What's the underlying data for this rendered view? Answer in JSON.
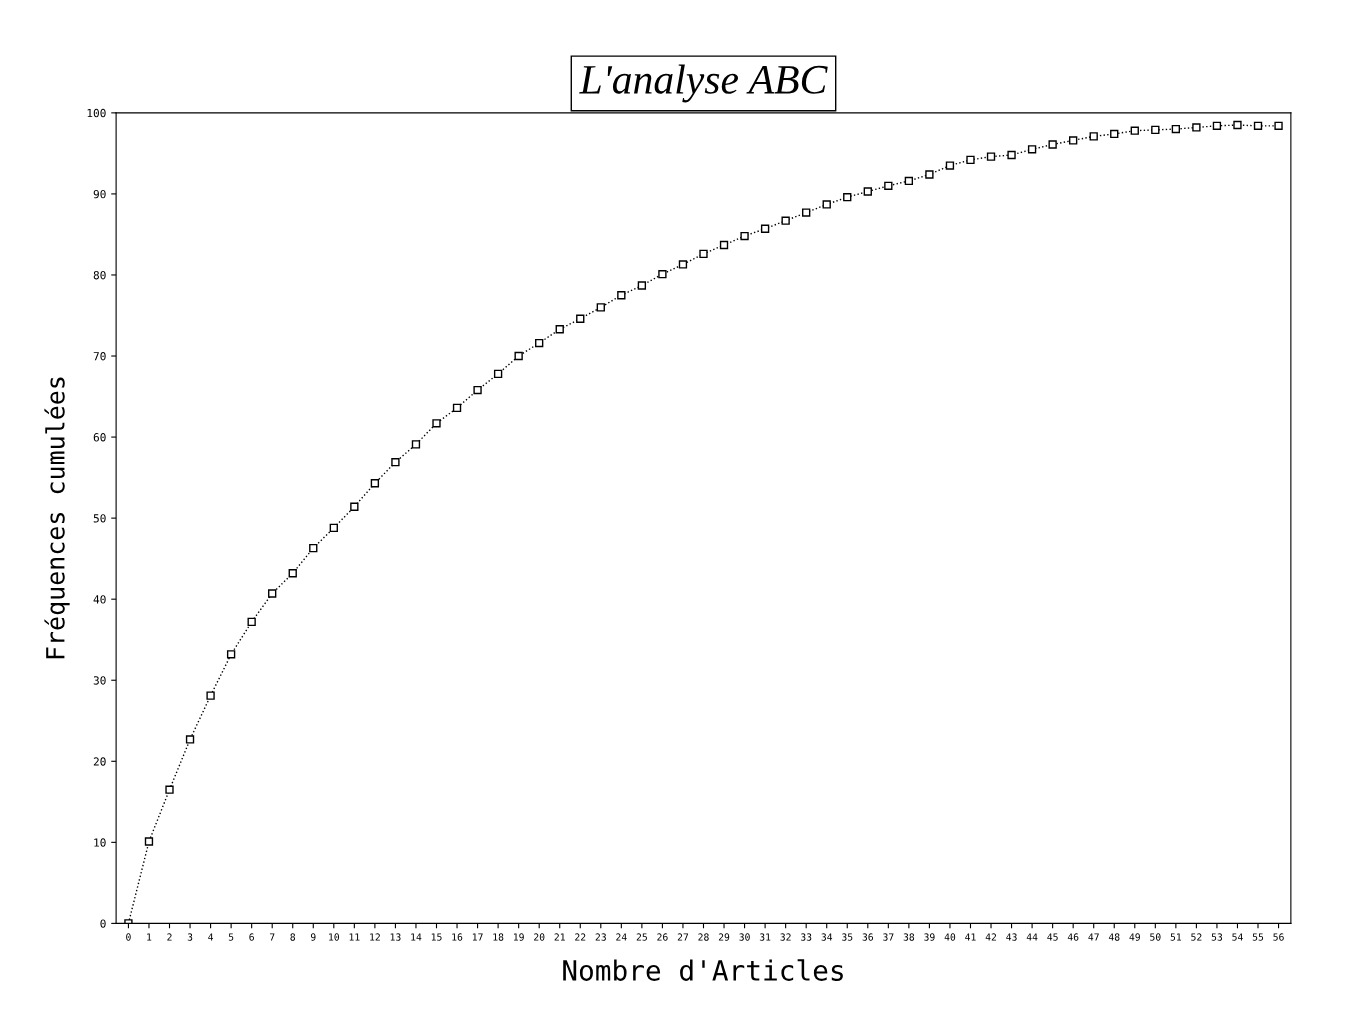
{
  "chart_data": {
    "type": "line",
    "title": "L'analyse ABC",
    "xlabel": "Nombre d'Articles",
    "ylabel": "Fréquences cumulées",
    "categories": [
      "0",
      "1",
      "2",
      "3",
      "4",
      "5",
      "6",
      "7",
      "8",
      "9",
      "10",
      "11",
      "12",
      "13",
      "14",
      "15",
      "16",
      "17",
      "18",
      "19",
      "20",
      "21",
      "22",
      "23",
      "24",
      "25",
      "26",
      "27",
      "28",
      "29",
      "30",
      "31",
      "32",
      "33",
      "34",
      "35",
      "36",
      "37",
      "38",
      "39",
      "40",
      "41",
      "42",
      "43",
      "44",
      "45",
      "46",
      "47",
      "48",
      "49",
      "50",
      "51",
      "52",
      "53",
      "54",
      "55",
      "56"
    ],
    "series": [
      {
        "color": "#000000",
        "values": [
          0,
          10.1,
          16.5,
          22.7,
          28.1,
          33.2,
          37.2,
          40.7,
          43.2,
          46.3,
          48.8,
          51.4,
          54.3,
          56.9,
          59.1,
          61.7,
          63.6,
          65.8,
          67.8,
          70.0,
          71.6,
          73.3,
          74.6,
          76.0,
          77.5,
          78.7,
          80.1,
          81.3,
          82.6,
          83.7,
          84.8,
          85.7,
          86.7,
          87.7,
          88.7,
          89.6,
          90.3,
          91.0,
          91.6,
          92.4,
          93.5,
          94.2,
          94.6,
          94.8,
          95.5,
          96.1,
          96.6,
          97.1,
          97.4,
          97.8,
          97.9,
          98.0,
          98.2,
          98.4,
          98.5,
          98.4,
          98.4
        ]
      }
    ],
    "ylim": [
      0,
      100
    ],
    "yticks": [
      0,
      10,
      20,
      30,
      40,
      50,
      60,
      70,
      80,
      90,
      100
    ],
    "grid": false,
    "legend": false,
    "marker": "square",
    "line_style": "dotted"
  }
}
